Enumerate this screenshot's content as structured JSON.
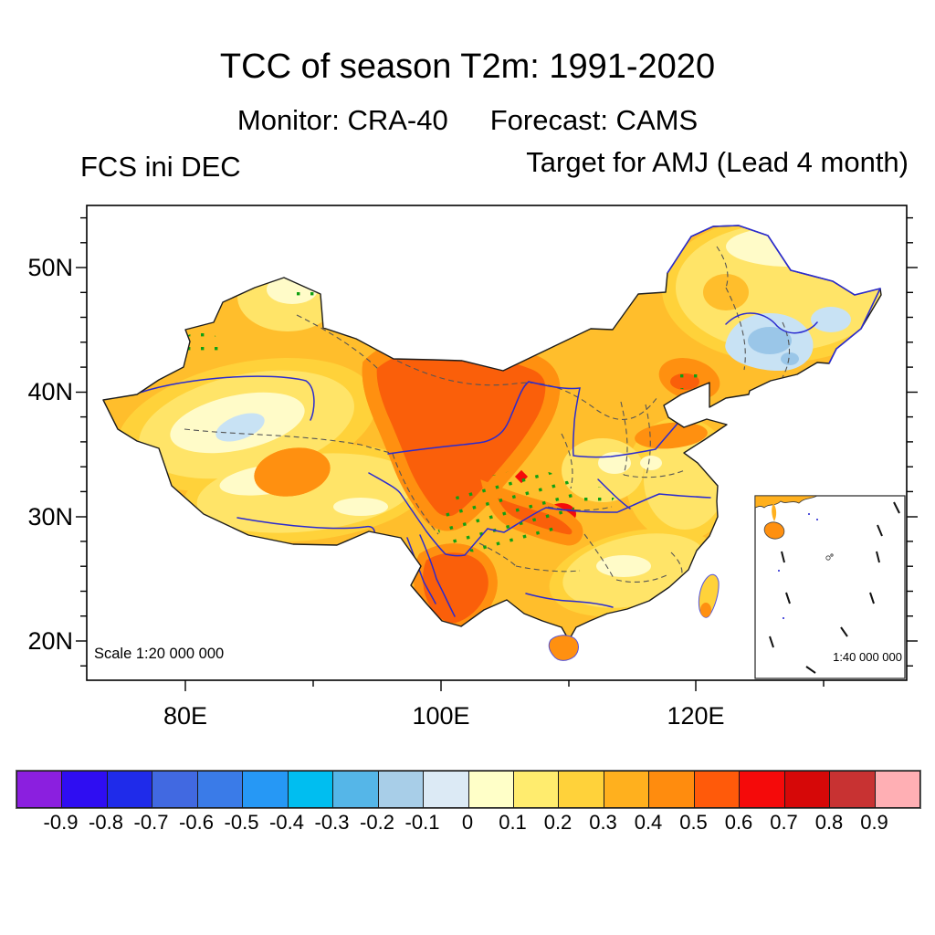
{
  "header": {
    "title": "TCC of season T2m: 1991-2020",
    "monitor": "Monitor: CRA-40",
    "forecast": "Forecast: CAMS",
    "init_label": "FCS ini DEC",
    "target_label": "Target for AMJ (Lead 4 month)"
  },
  "map": {
    "scale_note": "Scale 1:20 000 000",
    "inset_scale_note": "1:40 000 000",
    "lat_labels": [
      "50N",
      "40N",
      "30N",
      "20N"
    ],
    "lon_labels": [
      "80E",
      "100E",
      "120E"
    ]
  },
  "colorbar": {
    "tick_labels": [
      "-0.9",
      "-0.8",
      "-0.7",
      "-0.6",
      "-0.5",
      "-0.4",
      "-0.3",
      "-0.2",
      "-0.1",
      "0",
      "0.1",
      "0.2",
      "0.3",
      "0.4",
      "0.5",
      "0.6",
      "0.7",
      "0.8",
      "0.9"
    ],
    "colors": [
      "#8B1FDF",
      "#2F0DF2",
      "#1F2BEA",
      "#4169E1",
      "#3A7BE8",
      "#2698F5",
      "#00BEF0",
      "#55B6E8",
      "#A8CEE8",
      "#DCEAF5",
      "#FFFFC8",
      "#FFEC6E",
      "#FFD23A",
      "#FFB01E",
      "#FF8C0E",
      "#FF5A0A",
      "#F50A0A",
      "#D60808",
      "#C83232",
      "#FFAFB4"
    ]
  },
  "palette": {
    "base": "#FFBE2C",
    "gold": "#FFD23A",
    "yellow": "#FFE468",
    "pale_yellow": "#FFFBC8",
    "amber": "#FF9010",
    "dark_orange": "#FA5F0A",
    "red": "#F50A0A",
    "light_blue": "#C8E2F4",
    "mid_blue": "#9AC6E8",
    "river": "#2B2BCF",
    "coast": "#5353DC",
    "province": "#555555",
    "outline": "#1C1C1C",
    "stipple": "#0FA012",
    "inset_land": "#FFB01E"
  },
  "chart_data": {
    "type": "heatmap",
    "title": "TCC of season T2m: 1991-2020",
    "monitor": "CRA-40",
    "forecast_model": "CAMS",
    "forecast_init": "FCS ini DEC",
    "target": "Target for AMJ (Lead 4 month)",
    "x": {
      "tick_labels": [
        "80E",
        "100E",
        "120E"
      ],
      "lon_range": [
        72.3,
        136.6
      ],
      "minor_ticks_every_deg": 10
    },
    "y": {
      "tick_labels": [
        "20N",
        "30N",
        "40N",
        "50N"
      ],
      "lat_range": [
        16.9,
        54.9
      ],
      "minor_ticks_every_deg": 2
    },
    "colorbar_levels": [
      -0.9,
      -0.8,
      -0.7,
      -0.6,
      -0.5,
      -0.4,
      -0.3,
      -0.2,
      -0.1,
      0,
      0.1,
      0.2,
      0.3,
      0.4,
      0.5,
      0.6,
      0.7,
      0.8,
      0.9
    ],
    "colorbar_colors": [
      "#8B1FDF",
      "#2F0DF2",
      "#1F2BEA",
      "#4169E1",
      "#3A7BE8",
      "#2698F5",
      "#00BEF0",
      "#55B6E8",
      "#A8CEE8",
      "#DCEAF5",
      "#FFFFC8",
      "#FFEC6E",
      "#FFD23A",
      "#FFB01E",
      "#FF8C0E",
      "#FF5A0A",
      "#F50A0A",
      "#D60808",
      "#C83232",
      "#FFAFB4"
    ],
    "map_scale": "Scale 1:20 000 000",
    "inset_scale": "1:40 000 000",
    "regions_read_from_figure": [
      {
        "region": "north-central China (Gansu-Qinghai-Ningxia-Shaanxi)",
        "tcc_range": "0.5 to 0.7",
        "green_stippling": true
      },
      {
        "region": "southwest China (Yunnan, west Sichuan)",
        "tcc_range": "0.5 to 0.6",
        "green_stippling": true
      },
      {
        "region": "small spot near 101E 37N and east Sichuan",
        "tcc_range": "0.6 to 0.7",
        "green_stippling": true
      },
      {
        "region": "Tarim Basin, south Xinjiang",
        "tcc_range": "-0.2 to 0.1",
        "green_stippling": false
      },
      {
        "region": "central Northeast China plain",
        "tcc_range": "-0.3 to 0",
        "green_stippling": false
      },
      {
        "region": "most of east and south China, Tibet, north Xinjiang",
        "tcc_range": "0.1 to 0.5",
        "green_stippling": false
      }
    ]
  }
}
